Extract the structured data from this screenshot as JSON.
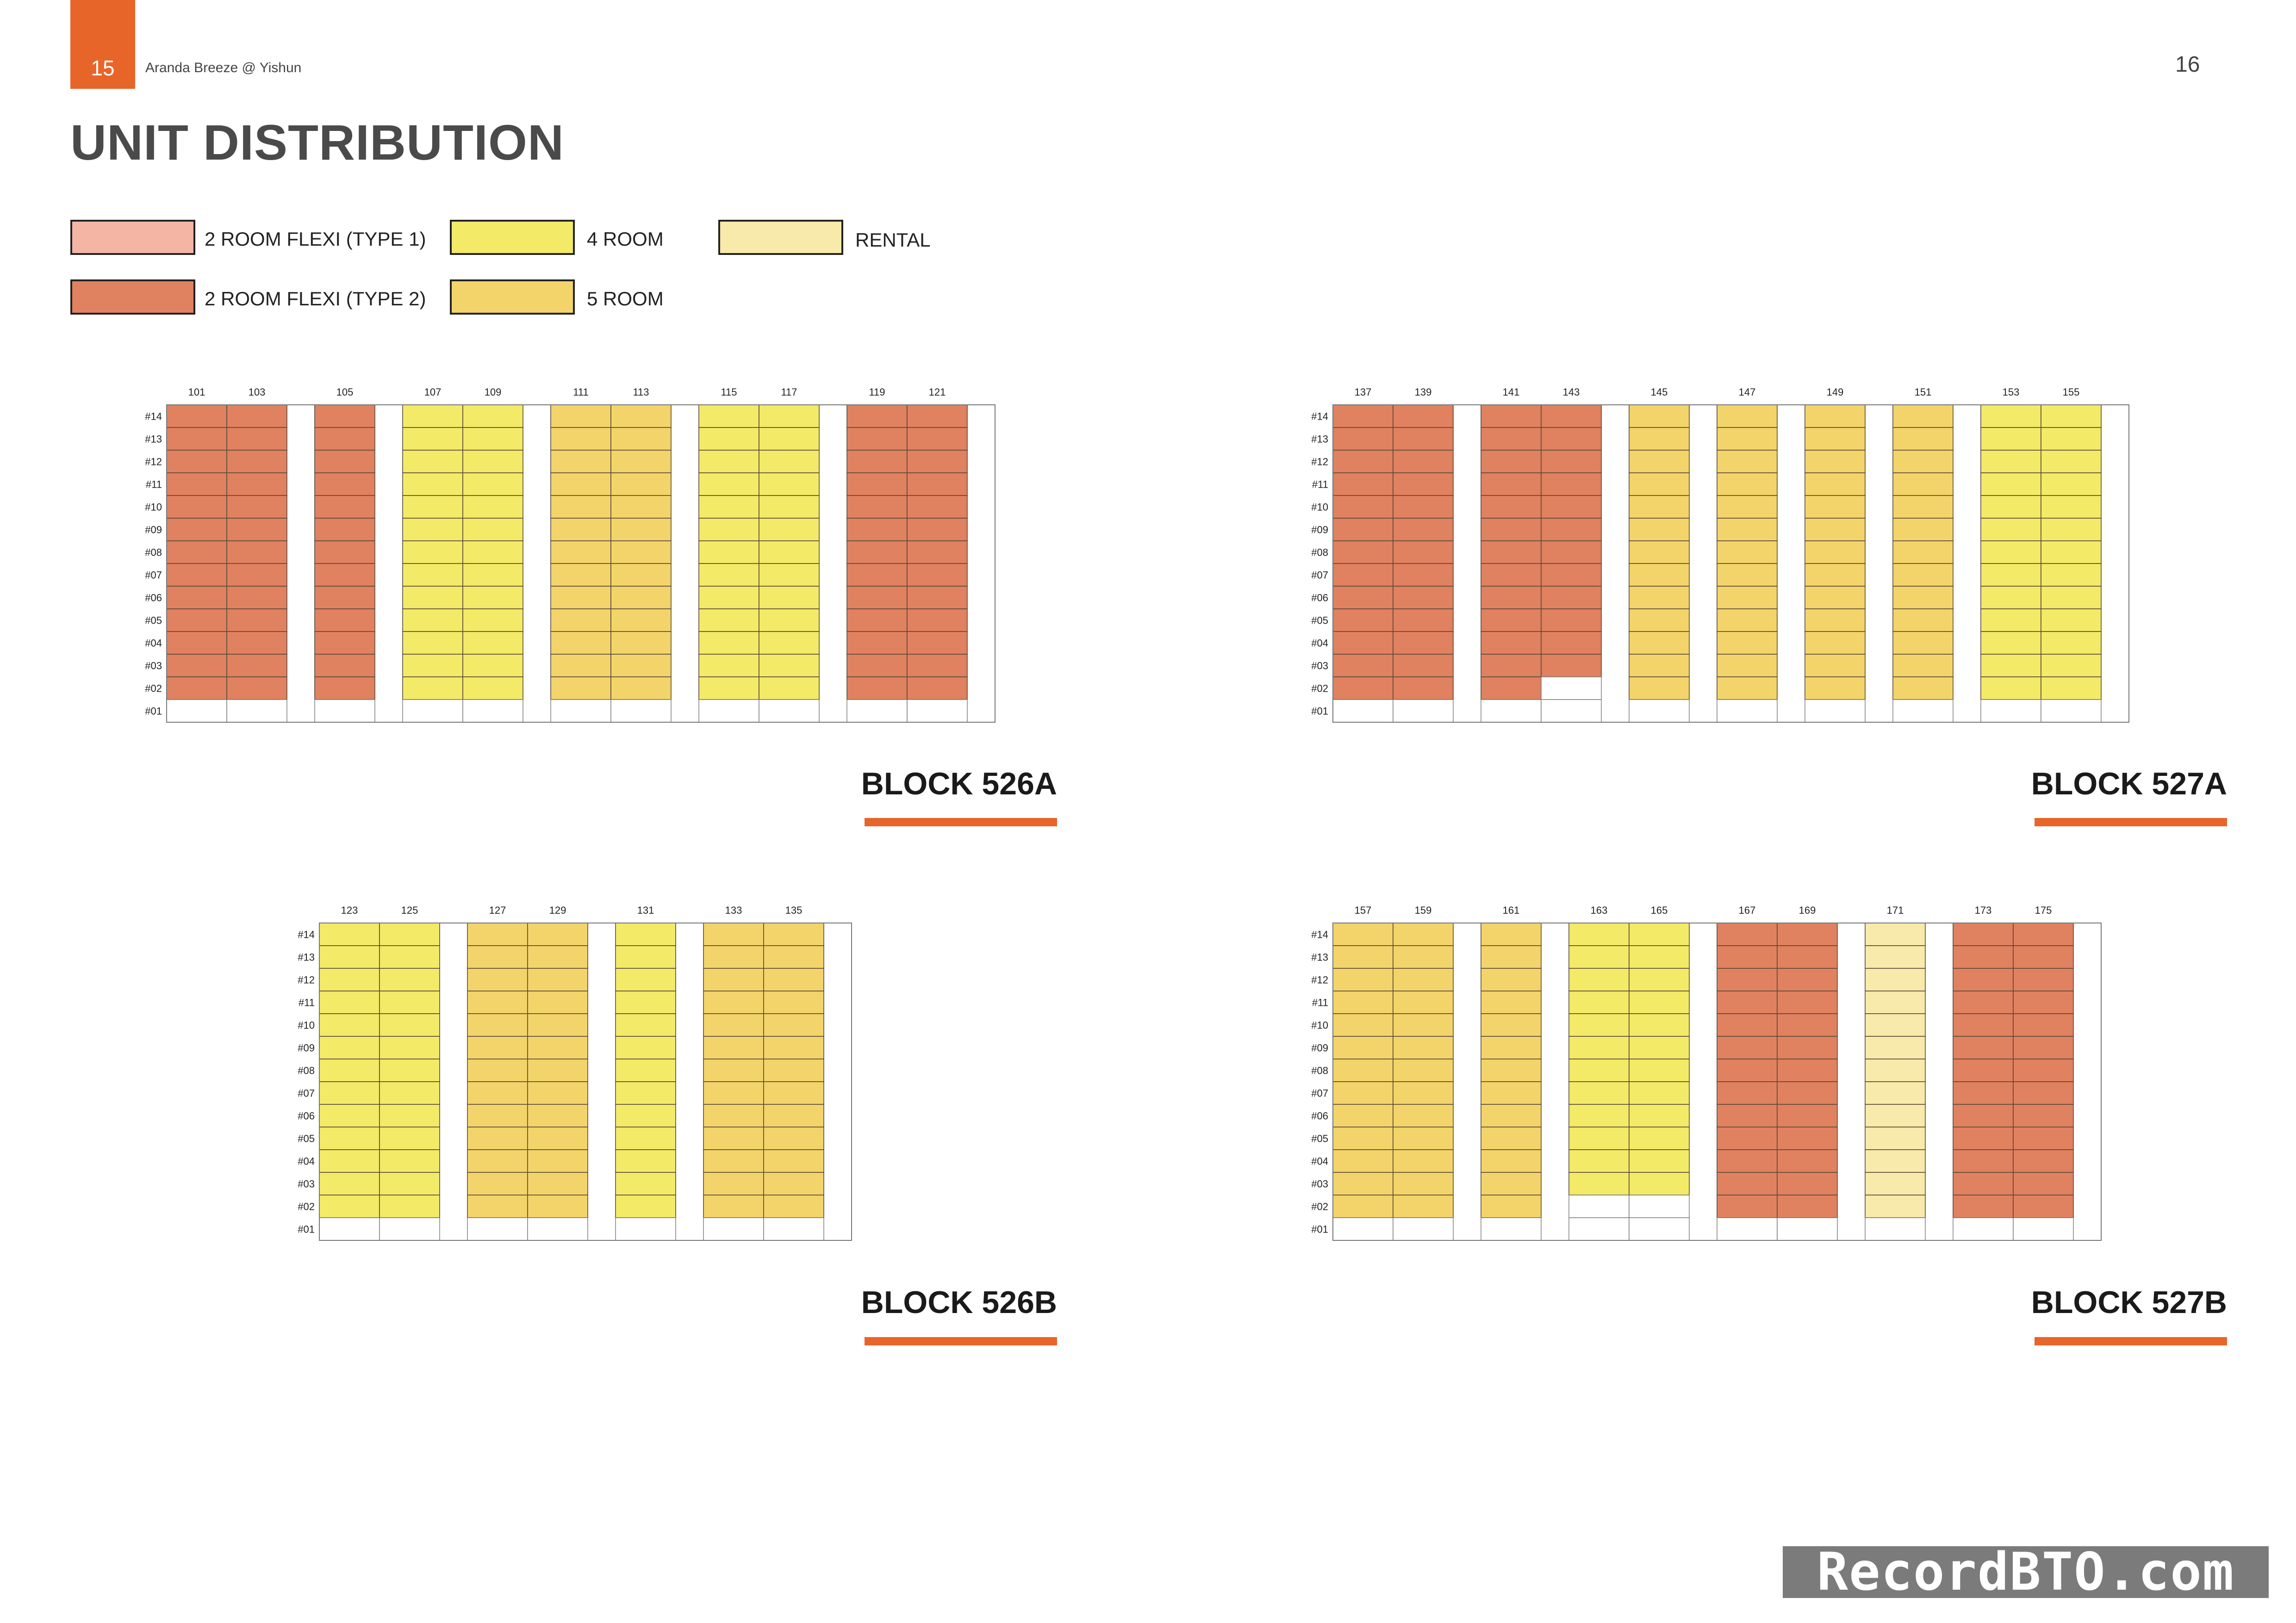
{
  "header": {
    "page_left": "15",
    "doc_title": "Aranda Breeze @ Yishun",
    "page_right": "16",
    "heading": "UNIT DISTRIBUTION"
  },
  "legend": [
    {
      "key": "F1",
      "label": "2 ROOM FLEXI (TYPE 1)",
      "color": "#F5B5A5"
    },
    {
      "key": "F2",
      "label": "2 ROOM FLEXI (TYPE 2)",
      "color": "#E08160"
    },
    {
      "key": "R4",
      "label": "4 ROOM",
      "color": "#F3EA68"
    },
    {
      "key": "R5",
      "label": "5 ROOM",
      "color": "#F3D46A"
    },
    {
      "key": "RT",
      "label": "RENTAL",
      "color": "#F7EAAA"
    }
  ],
  "floors": [
    "#14",
    "#13",
    "#12",
    "#11",
    "#10",
    "#09",
    "#08",
    "#07",
    "#06",
    "#05",
    "#04",
    "#03",
    "#02",
    "#01"
  ],
  "watermark": "RecordBTO.com",
  "blocks": [
    {
      "name": "BLOCK 526A",
      "columns": [
        {
          "unit": "101",
          "type": "F2",
          "lowest": 2
        },
        {
          "unit": "103",
          "type": "F2",
          "lowest": 2
        },
        {
          "unit": "",
          "type": "gap"
        },
        {
          "unit": "105",
          "type": "F2",
          "lowest": 2
        },
        {
          "unit": "",
          "type": "gap"
        },
        {
          "unit": "107",
          "type": "R4",
          "lowest": 2
        },
        {
          "unit": "109",
          "type": "R4",
          "lowest": 2
        },
        {
          "unit": "",
          "type": "gap"
        },
        {
          "unit": "111",
          "type": "R5",
          "lowest": 2
        },
        {
          "unit": "113",
          "type": "R5",
          "lowest": 2
        },
        {
          "unit": "",
          "type": "gap"
        },
        {
          "unit": "115",
          "type": "R4",
          "lowest": 2
        },
        {
          "unit": "117",
          "type": "R4",
          "lowest": 2
        },
        {
          "unit": "",
          "type": "gap"
        },
        {
          "unit": "119",
          "type": "F2",
          "lowest": 2
        },
        {
          "unit": "121",
          "type": "F2",
          "lowest": 2
        },
        {
          "unit": "",
          "type": "gap"
        }
      ]
    },
    {
      "name": "BLOCK 527A",
      "columns": [
        {
          "unit": "137",
          "type": "F2",
          "lowest": 2
        },
        {
          "unit": "139",
          "type": "F2",
          "lowest": 2
        },
        {
          "unit": "",
          "type": "gap"
        },
        {
          "unit": "141",
          "type": "F2",
          "lowest": 2
        },
        {
          "unit": "143",
          "type": "F2",
          "lowest": 3
        },
        {
          "unit": "",
          "type": "gap"
        },
        {
          "unit": "145",
          "type": "R5",
          "lowest": 2
        },
        {
          "unit": "",
          "type": "gap"
        },
        {
          "unit": "147",
          "type": "R5",
          "lowest": 2
        },
        {
          "unit": "",
          "type": "gap"
        },
        {
          "unit": "149",
          "type": "R5",
          "lowest": 2
        },
        {
          "unit": "",
          "type": "gap"
        },
        {
          "unit": "151",
          "type": "R5",
          "lowest": 2
        },
        {
          "unit": "",
          "type": "gap"
        },
        {
          "unit": "153",
          "type": "R4",
          "lowest": 2
        },
        {
          "unit": "155",
          "type": "R4",
          "lowest": 2
        },
        {
          "unit": "",
          "type": "gap"
        }
      ]
    },
    {
      "name": "BLOCK 526B",
      "columns": [
        {
          "unit": "123",
          "type": "R4",
          "lowest": 2
        },
        {
          "unit": "125",
          "type": "R4",
          "lowest": 2
        },
        {
          "unit": "",
          "type": "gap"
        },
        {
          "unit": "127",
          "type": "R5",
          "lowest": 2
        },
        {
          "unit": "129",
          "type": "R5",
          "lowest": 2
        },
        {
          "unit": "",
          "type": "gap"
        },
        {
          "unit": "131",
          "type": "R4",
          "lowest": 2
        },
        {
          "unit": "",
          "type": "gap"
        },
        {
          "unit": "133",
          "type": "R5",
          "lowest": 2
        },
        {
          "unit": "135",
          "type": "R5",
          "lowest": 2
        },
        {
          "unit": "",
          "type": "gap"
        }
      ]
    },
    {
      "name": "BLOCK 527B",
      "columns": [
        {
          "unit": "157",
          "type": "R5",
          "lowest": 2
        },
        {
          "unit": "159",
          "type": "R5",
          "lowest": 2
        },
        {
          "unit": "",
          "type": "gap"
        },
        {
          "unit": "161",
          "type": "R5",
          "lowest": 2
        },
        {
          "unit": "",
          "type": "gap"
        },
        {
          "unit": "163",
          "type": "R4",
          "lowest": 3
        },
        {
          "unit": "165",
          "type": "R4",
          "lowest": 3
        },
        {
          "unit": "",
          "type": "gap"
        },
        {
          "unit": "167",
          "type": "F2",
          "lowest": 2
        },
        {
          "unit": "169",
          "type": "F2",
          "lowest": 2
        },
        {
          "unit": "",
          "type": "gap"
        },
        {
          "unit": "171",
          "type": "RT",
          "lowest": 2
        },
        {
          "unit": "",
          "type": "gap"
        },
        {
          "unit": "173",
          "type": "F2",
          "lowest": 2
        },
        {
          "unit": "175",
          "type": "F2",
          "lowest": 2
        },
        {
          "unit": "",
          "type": "gap"
        }
      ]
    }
  ]
}
